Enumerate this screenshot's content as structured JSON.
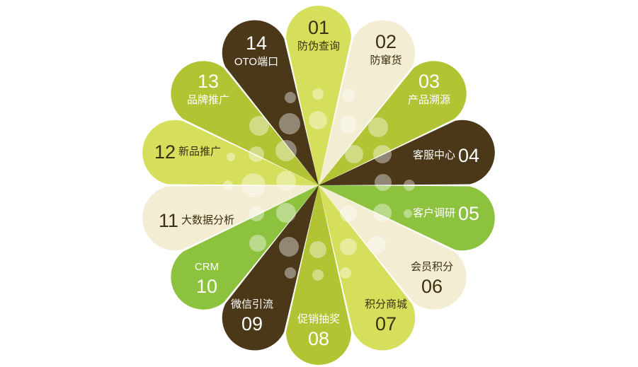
{
  "colors": {
    "dark_brown": "#4a3819",
    "cream": "#f2edd3",
    "light_green": "#d5df5b",
    "olive_green": "#b2c433",
    "bright_green": "#8dc23f",
    "text_dark": "#3e2e12",
    "text_light": "#ffffff"
  },
  "petals": [
    {
      "number": "01",
      "label": "防伪查询",
      "color": "light_green"
    },
    {
      "number": "02",
      "label": "防窜货",
      "color": "cream"
    },
    {
      "number": "03",
      "label": "产品溯源",
      "color": "olive_green"
    },
    {
      "number": "04",
      "label": "客服中心",
      "color": "dark_brown"
    },
    {
      "number": "05",
      "label": "客户调研",
      "color": "bright_green"
    },
    {
      "number": "06",
      "label": "会员积分",
      "color": "cream"
    },
    {
      "number": "07",
      "label": "积分商城",
      "color": "light_green"
    },
    {
      "number": "08",
      "label": "促销抽奖",
      "color": "olive_green"
    },
    {
      "number": "09",
      "label": "微信引流",
      "color": "dark_brown"
    },
    {
      "number": "10",
      "label": "CRM",
      "color": "bright_green"
    },
    {
      "number": "11",
      "label": "大数据分析",
      "color": "cream"
    },
    {
      "number": "12",
      "label": "新品推广",
      "color": "light_green"
    },
    {
      "number": "13",
      "label": "品牌推广",
      "color": "olive_green"
    },
    {
      "number": "14",
      "label": "OTO端口",
      "color": "dark_brown"
    }
  ]
}
